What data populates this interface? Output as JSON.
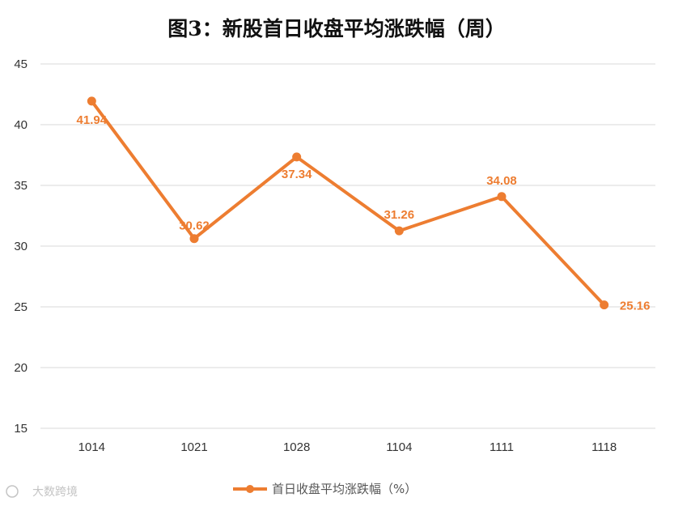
{
  "chart_data": {
    "type": "line",
    "title": "图3：新股首日收盘平均涨跌幅（周）",
    "categories": [
      "1014",
      "1021",
      "1028",
      "1104",
      "1111",
      "1118"
    ],
    "series": [
      {
        "name": "首日收盘平均涨跌幅（%）",
        "values": [
          41.94,
          30.62,
          37.34,
          31.26,
          34.08,
          25.16
        ],
        "data_labels": [
          "41.94",
          "30.62",
          "37.34",
          "31.26",
          "34.08",
          "25.16"
        ],
        "color": "#ED7D31"
      }
    ],
    "ylim": [
      15,
      45
    ],
    "yticks": [
      15,
      20,
      25,
      30,
      35,
      40,
      45
    ],
    "grid": true,
    "legend_position": "bottom"
  },
  "watermark": {
    "text": "大数跨境"
  }
}
